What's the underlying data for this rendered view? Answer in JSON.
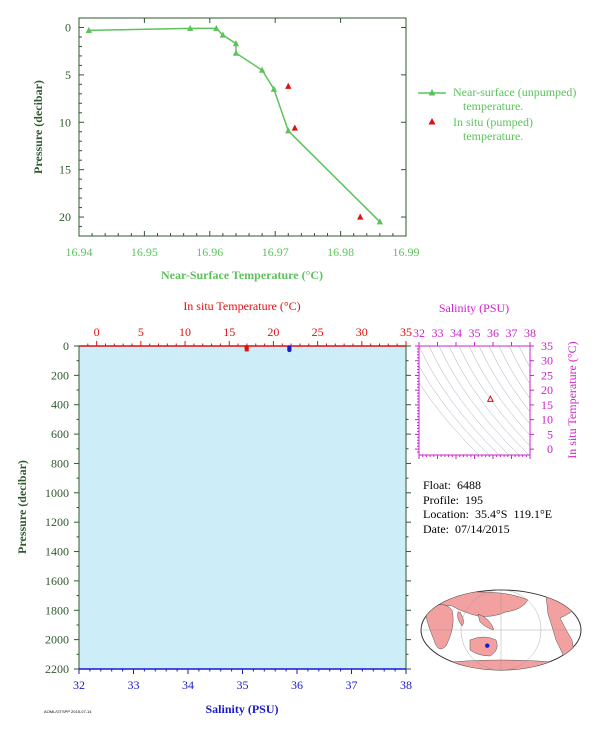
{
  "colors": {
    "near_surface": "#5cc35c",
    "insitu": "#dd1111",
    "salinity": "#1a1acc",
    "magenta": "#cc22cc",
    "axis_dark": "#2e5a2e",
    "panel_bg": "#cdeef8",
    "map_land": "#f2a0a0",
    "map_sea": "#ffffff"
  },
  "chart_data": [
    {
      "type": "line",
      "xlabel": "Near-Surface Temperature (°C)",
      "ylabel": "Pressure (decibar)",
      "xlim": [
        16.94,
        16.99
      ],
      "ylim": [
        22,
        -1
      ],
      "x_ticks": [
        "16.94",
        "16.95",
        "16.96",
        "16.97",
        "16.98",
        "16.99"
      ],
      "y_ticks": [
        "0",
        "5",
        "10",
        "15",
        "20"
      ],
      "grid": false,
      "legend_position": "right",
      "series": [
        {
          "name": "Near-surface (unpumped) temperature.",
          "marker": "triangle",
          "points": [
            [
              16.9415,
              0.3
            ],
            [
              16.957,
              0.1
            ],
            [
              16.961,
              0.1
            ],
            [
              16.962,
              0.8
            ],
            [
              16.964,
              1.7
            ],
            [
              16.964,
              2.7
            ],
            [
              16.968,
              4.5
            ],
            [
              16.9698,
              6.5
            ],
            [
              16.972,
              10.9
            ],
            [
              16.986,
              20.5
            ]
          ]
        },
        {
          "name": "In situ (pumped) temperature.",
          "marker": "triangle",
          "points": [
            [
              16.972,
              6.2
            ],
            [
              16.973,
              10.6
            ],
            [
              16.983,
              20.0
            ]
          ]
        }
      ]
    },
    {
      "type": "scatter",
      "ylabel": "Pressure (decibar)",
      "top_xlabel": "In situ Temperature (°C)",
      "bottom_xlabel": "Salinity (PSU)",
      "temperature_lim": [
        -2,
        35
      ],
      "salinity_lim": [
        32,
        38
      ],
      "pressure_lim": [
        0,
        2200
      ],
      "temperature_ticks": [
        "0",
        "5",
        "10",
        "15",
        "20",
        "25",
        "30",
        "35"
      ],
      "salinity_ticks": [
        "32",
        "33",
        "34",
        "35",
        "36",
        "37",
        "38"
      ],
      "pressure_ticks": [
        "0",
        "200",
        "400",
        "600",
        "800",
        "1000",
        "1200",
        "1400",
        "1600",
        "1800",
        "2000",
        "2200"
      ],
      "series": [
        {
          "name": "In situ Temperature",
          "points": [
            [
              16.97,
              5
            ],
            [
              16.98,
              20
            ]
          ]
        },
        {
          "name": "Salinity",
          "points": [
            [
              35.86,
              5
            ],
            [
              35.86,
              20
            ]
          ]
        }
      ]
    },
    {
      "type": "scatter",
      "xlabel": "Salinity (PSU)",
      "ylabel": "In situ Temperature (°C)",
      "xlim": [
        32,
        38
      ],
      "ylim": [
        -2,
        35
      ],
      "x_ticks": [
        "32",
        "33",
        "34",
        "35",
        "36",
        "37",
        "38"
      ],
      "y_ticks": [
        "0",
        "5",
        "10",
        "15",
        "20",
        "25",
        "30",
        "35"
      ],
      "points": [
        [
          35.86,
          16.97
        ]
      ]
    }
  ],
  "info": {
    "float_label": "Float:",
    "float_value": "6488",
    "profile_label": "Profile:",
    "profile_value": "195",
    "location_label": "Location:",
    "location_value": "35.4°S  119.1°E",
    "date_label": "Date:",
    "date_value": "07/14/2015"
  },
  "footer_code": "AOML/GTSPP 2015-07-14",
  "map": {
    "marker_color": "#1a1acc",
    "lat": -35.4,
    "lon": 119.1
  }
}
